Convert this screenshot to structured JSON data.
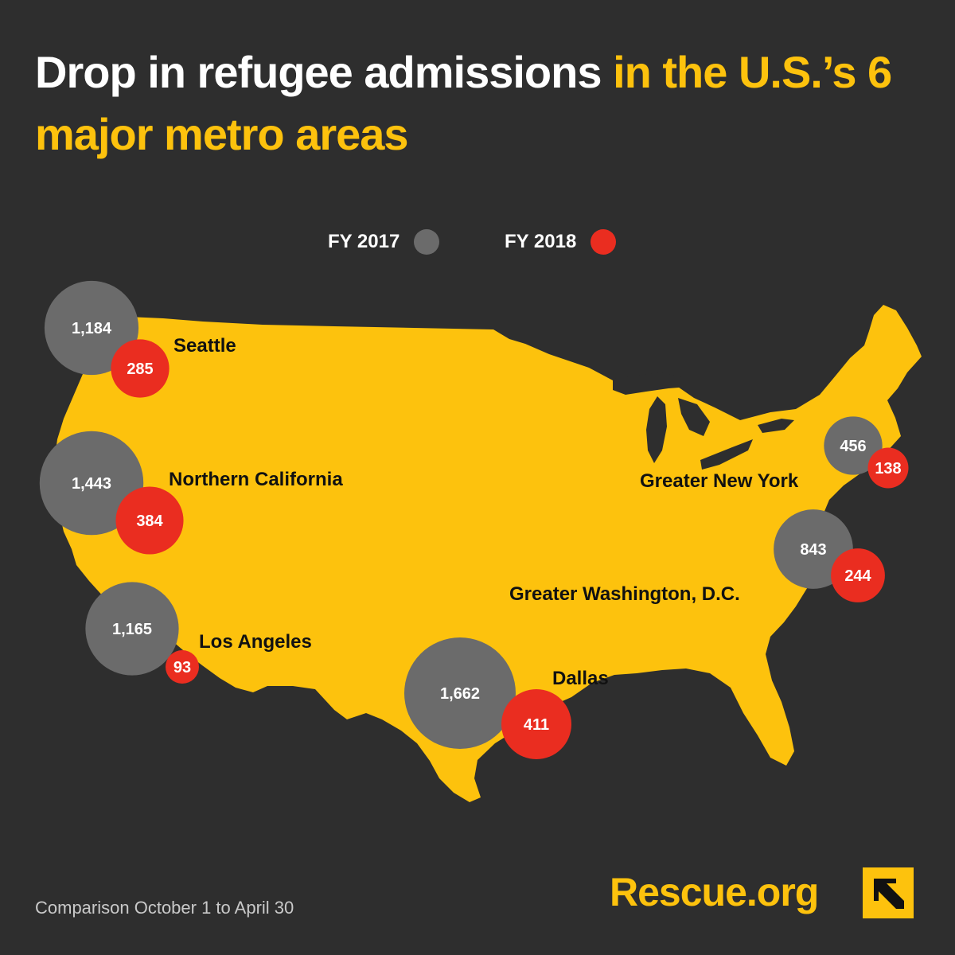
{
  "title": {
    "part_white": "Drop in refugee admissions",
    "part_yellow": "in the U.S.’s 6 major metro areas"
  },
  "legend": [
    {
      "label": "FY 2017",
      "color": "#6b6b6b"
    },
    {
      "label": "FY 2018",
      "color": "#ea2d20"
    }
  ],
  "colors": {
    "background": "#2e2e2e",
    "map": "#fdc20d",
    "fy2017": "#6b6b6b",
    "fy2018": "#ea2d20",
    "label": "#111111"
  },
  "chart_data": {
    "type": "bubble-map",
    "series": [
      "FY 2017",
      "FY 2018"
    ],
    "metros": [
      {
        "name": "Seattle",
        "fy2017": 1184,
        "fy2017_label": "1,184",
        "fy2018": 285,
        "fy2018_label": "285"
      },
      {
        "name": "Northern California",
        "fy2017": 1443,
        "fy2017_label": "1,443",
        "fy2018": 384,
        "fy2018_label": "384"
      },
      {
        "name": "Los Angeles",
        "fy2017": 1165,
        "fy2017_label": "1,165",
        "fy2018": 93,
        "fy2018_label": "93"
      },
      {
        "name": "Dallas",
        "fy2017": 1662,
        "fy2017_label": "1,662",
        "fy2018": 411,
        "fy2018_label": "411"
      },
      {
        "name": "Greater New York",
        "fy2017": 456,
        "fy2017_label": "456",
        "fy2018": 138,
        "fy2018_label": "138"
      },
      {
        "name": "Greater Washington, D.C.",
        "fy2017": 843,
        "fy2017_label": "843",
        "fy2018": 244,
        "fy2018_label": "244"
      }
    ]
  },
  "footnote": "Comparison October 1 to April 30",
  "brand": {
    "text": "Rescue.org",
    "logo": "irc-arrow-logo"
  }
}
